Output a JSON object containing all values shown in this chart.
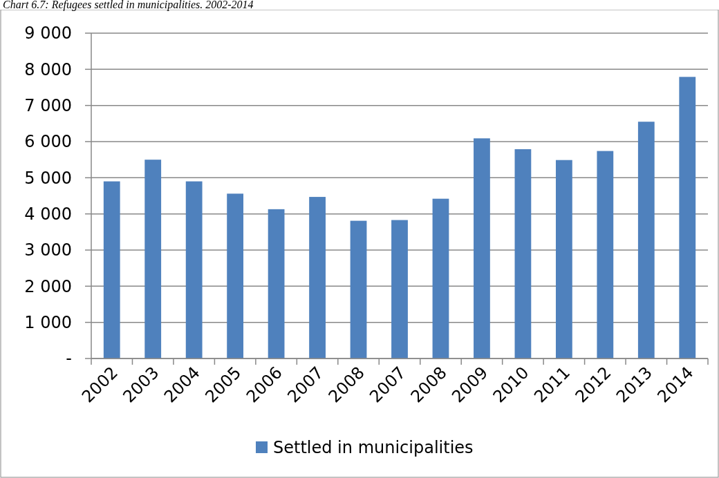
{
  "chart_data": {
    "type": "bar",
    "title": "Chart 6.7: Refugees settled in municipalities. 2002-2014",
    "categories": [
      "2002",
      "2003",
      "2004",
      "2005",
      "2006",
      "2007",
      "2008",
      "2007",
      "2008",
      "2009",
      "2010",
      "2011",
      "2012",
      "2013",
      "2014"
    ],
    "series": [
      {
        "name": "Settled in municipalities",
        "color": "#4f81bd",
        "values": [
          4900,
          5500,
          4900,
          4560,
          4130,
          4470,
          3810,
          3830,
          4420,
          6090,
          5790,
          5490,
          5740,
          6550,
          7790
        ]
      }
    ],
    "ylim": [
      0,
      9000
    ],
    "yticks": [
      {
        "value": 0,
        "label": "-"
      },
      {
        "value": 1000,
        "label": "1 000"
      },
      {
        "value": 2000,
        "label": "2 000"
      },
      {
        "value": 3000,
        "label": "3 000"
      },
      {
        "value": 4000,
        "label": "4 000"
      },
      {
        "value": 5000,
        "label": "5 000"
      },
      {
        "value": 6000,
        "label": "6 000"
      },
      {
        "value": 7000,
        "label": "7 000"
      },
      {
        "value": 8000,
        "label": "8 000"
      },
      {
        "value": 9000,
        "label": "9 000"
      }
    ],
    "grid": "y",
    "legend": "bottom"
  }
}
